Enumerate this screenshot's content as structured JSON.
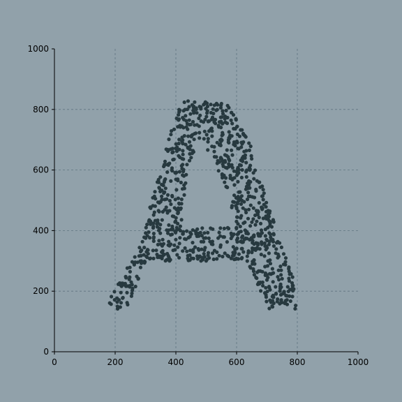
{
  "colors": {
    "background": "#91a1aa",
    "points": "#27393f",
    "grid": "#5f7480",
    "axis": "#000000"
  },
  "chart_data": {
    "type": "scatter",
    "title": "",
    "xlabel": "",
    "ylabel": "",
    "xlim": [
      0,
      1000
    ],
    "ylim": [
      0,
      1000
    ],
    "grid": true,
    "spines_visible": [
      "left",
      "bottom"
    ],
    "x_ticks": [
      "0",
      "200",
      "400",
      "600",
      "800",
      "1000"
    ],
    "y_ticks": [
      "0",
      "200",
      "400",
      "600",
      "800",
      "1000"
    ],
    "points_approx_count": 1000,
    "points_shape": "letter A",
    "letter_A_outline": {
      "left_leg_outer": [
        [
          180,
          140
        ],
        [
          280,
          330
        ],
        [
          400,
          800
        ],
        [
          430,
          830
        ]
      ],
      "left_leg_inner": [
        [
          280,
          140
        ],
        [
          330,
          140
        ],
        [
          420,
          560
        ],
        [
          460,
          650
        ],
        [
          480,
          780
        ]
      ],
      "right_leg_outer": [
        [
          480,
          830
        ],
        [
          560,
          820
        ],
        [
          640,
          700
        ],
        [
          700,
          500
        ],
        [
          740,
          380
        ],
        [
          800,
          190
        ],
        [
          800,
          140
        ]
      ],
      "right_leg_inner": [
        [
          500,
          660
        ],
        [
          540,
          560
        ],
        [
          610,
          390
        ],
        [
          660,
          250
        ],
        [
          700,
          140
        ]
      ],
      "crossbar": {
        "x_range": [
          330,
          620
        ],
        "y_range": [
          300,
          400
        ]
      },
      "counter_hole": {
        "top_y": 700,
        "bottom_y": 410
      }
    }
  }
}
